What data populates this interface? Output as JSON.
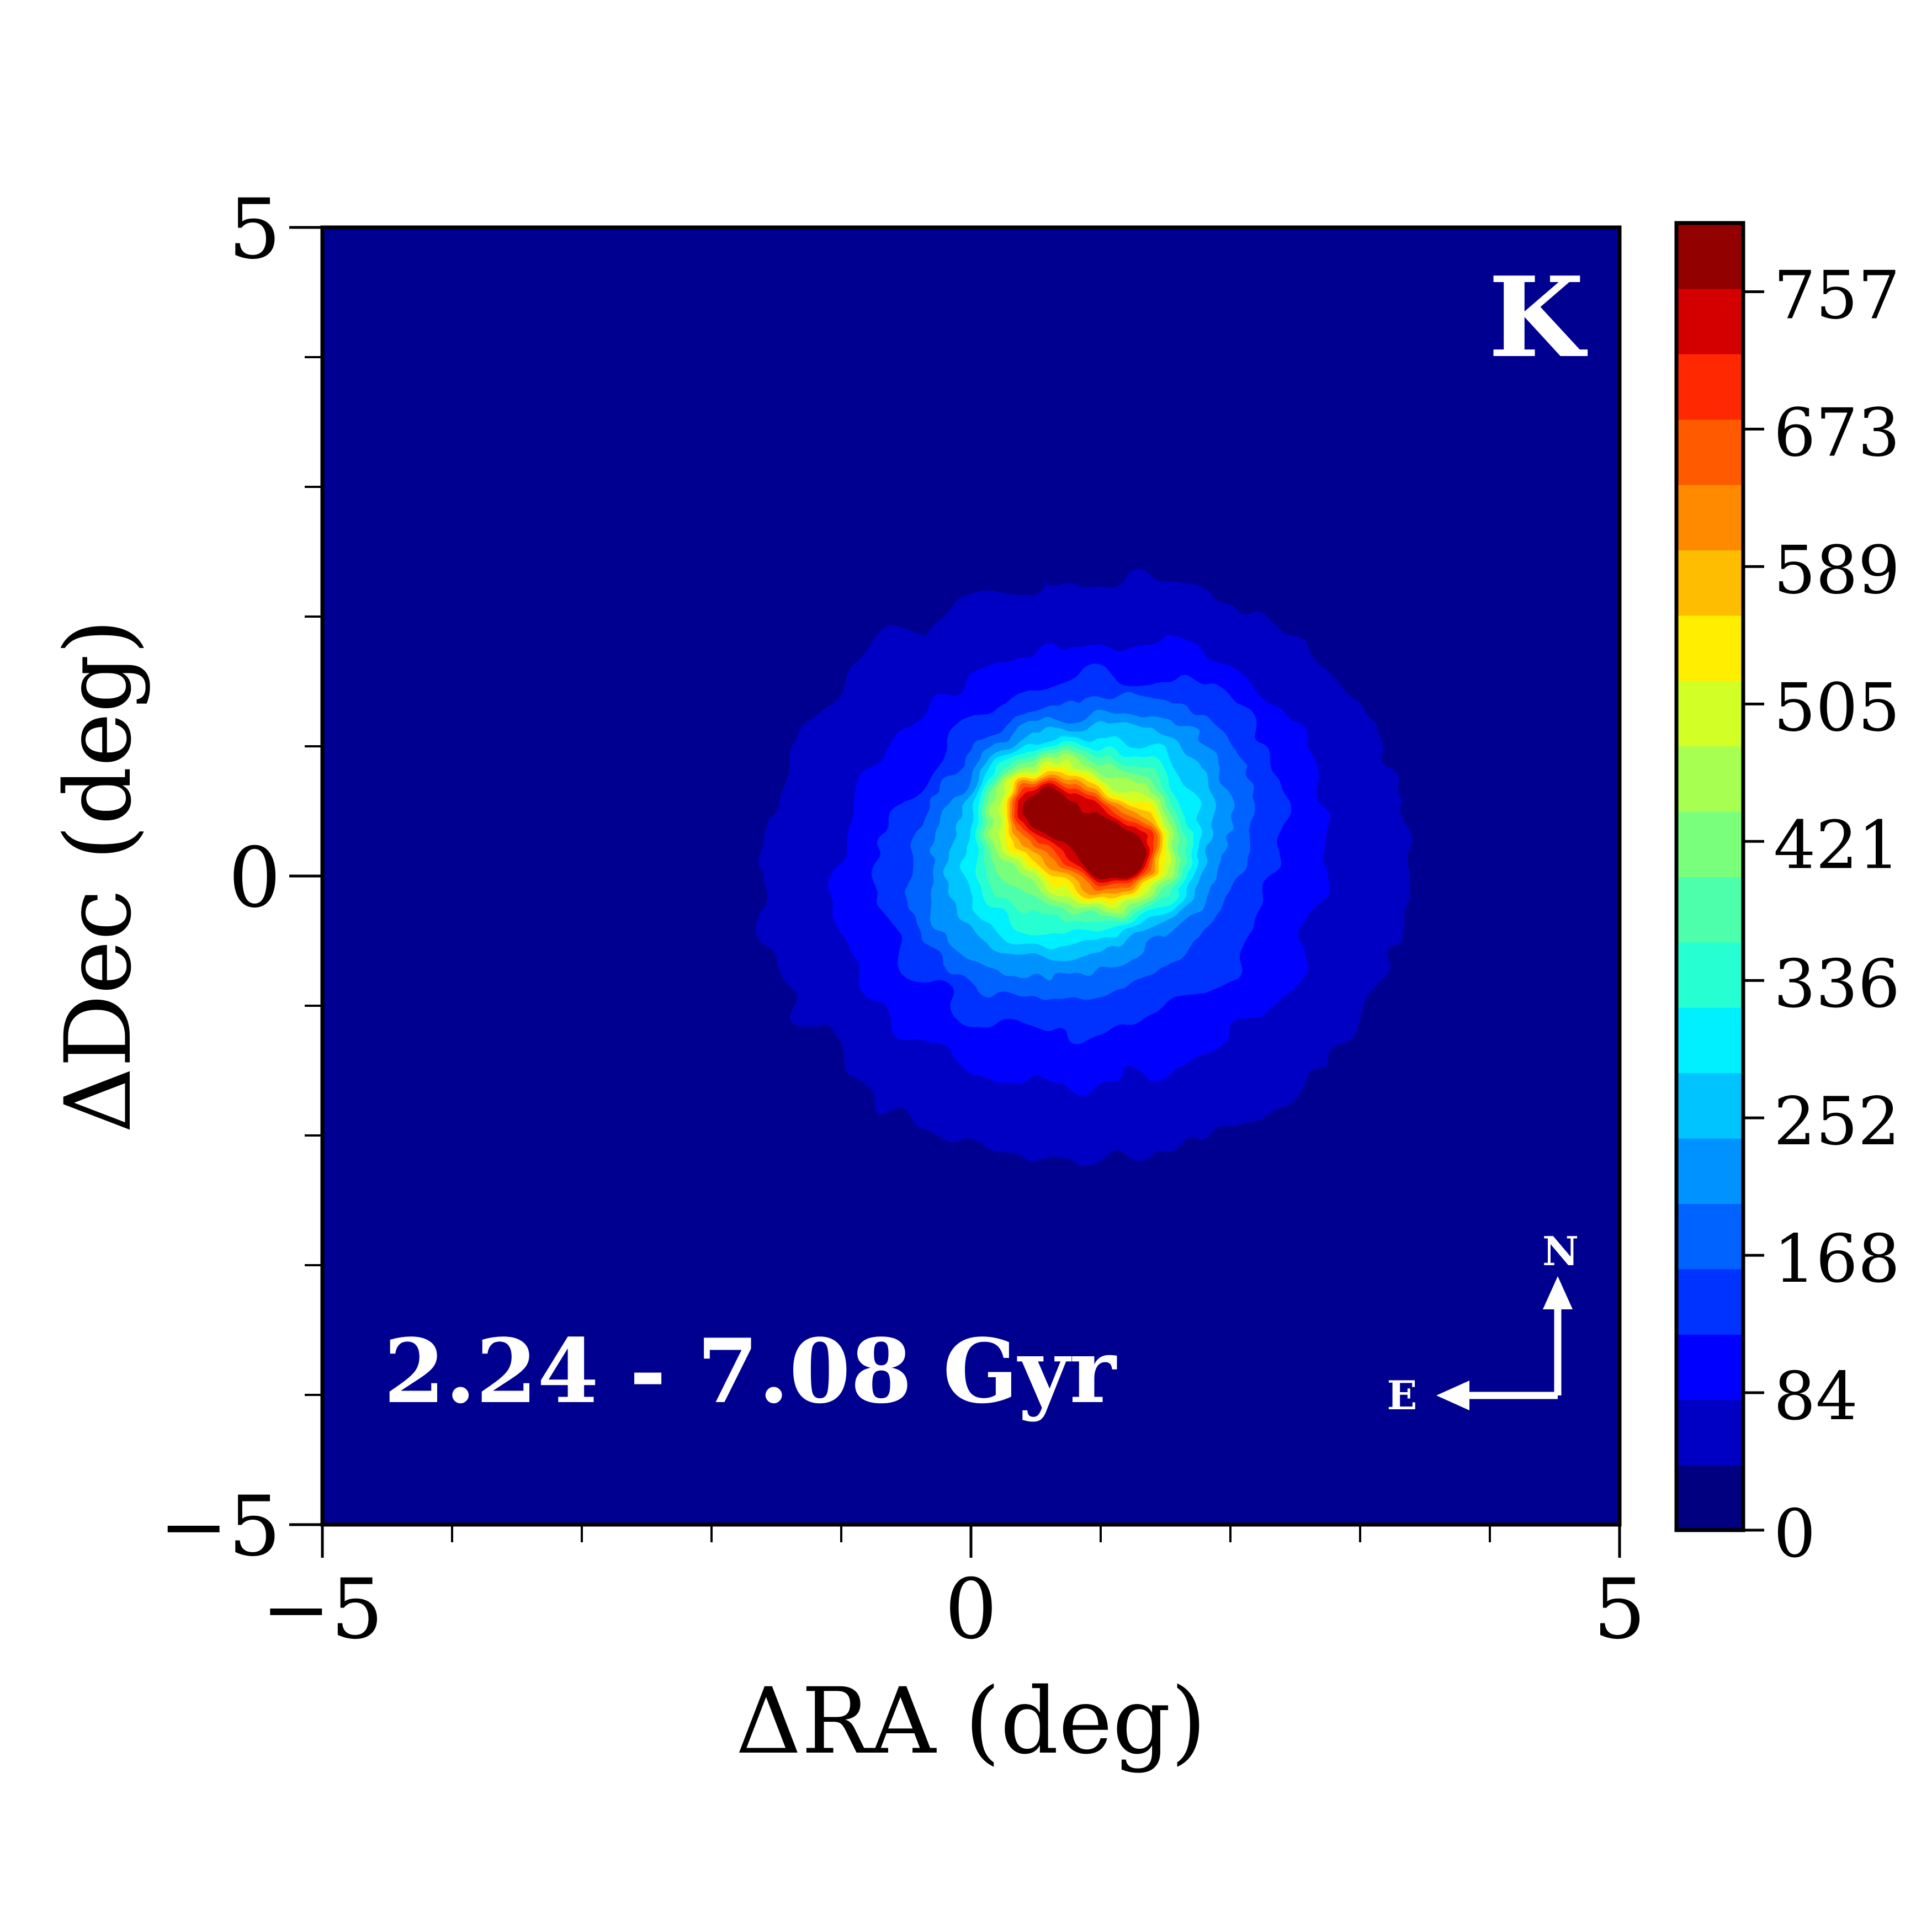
{
  "chart_data": {
    "type": "contour",
    "xlabel": "ΔRA (deg)",
    "ylabel": "ΔDec (deg)",
    "xlim": [
      -5,
      5
    ],
    "ylim": [
      -5,
      5
    ],
    "x_major_ticks": [
      -5,
      0,
      5
    ],
    "y_major_ticks": [
      -5,
      0,
      5
    ],
    "x_minor_ticks": [
      -4,
      -3,
      -2,
      -1,
      1,
      2,
      3,
      4
    ],
    "y_minor_ticks": [
      -4,
      -3,
      -2,
      -1,
      1,
      2,
      3,
      4
    ],
    "x_tick_labels": [
      "−5",
      "0",
      "5"
    ],
    "y_tick_labels": [
      "−5",
      "0",
      "5"
    ],
    "grid": false,
    "panel_label": "K",
    "age_range_label": "2.24 - 7.08 Gyr",
    "compass": {
      "north": "N",
      "east": "E"
    },
    "colorbar": {
      "colormap": "jet",
      "range": [
        0,
        799
      ],
      "levels": 19,
      "tick_values": [
        0,
        84,
        168,
        252,
        336,
        421,
        505,
        589,
        673,
        757
      ],
      "tick_labels": [
        "0",
        "84",
        "168",
        "252",
        "336",
        "421",
        "505",
        "589",
        "673",
        "757"
      ],
      "colors": [
        "#000080",
        "#0000c4",
        "#0000ff",
        "#0033ff",
        "#0063ff",
        "#0093ff",
        "#00c4ff",
        "#00f0ff",
        "#26ffd1",
        "#4dffaa",
        "#7aff7d",
        "#a6ff51",
        "#d1ff26",
        "#ffee00",
        "#ffbd00",
        "#ff8a00",
        "#ff5a00",
        "#ff2800",
        "#d40000",
        "#920000"
      ]
    },
    "density_peaks": [
      {
        "x": 0.55,
        "y": 0.55,
        "value": 760
      },
      {
        "x": 1.15,
        "y": 0.15,
        "value": 790
      }
    ]
  }
}
